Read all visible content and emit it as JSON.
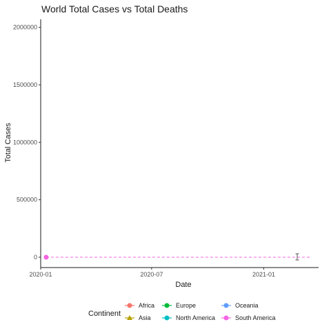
{
  "chart_data": {
    "type": "line",
    "title": "World Total Cases vs Total Deaths",
    "xlabel": "Date",
    "ylabel": "Total Cases",
    "x_range": [
      "2020-01-01",
      "2021-04-01"
    ],
    "ylim": [
      -90000,
      2070000
    ],
    "x_ticks": [
      {
        "date": "2020-01-01",
        "label": "2020-01"
      },
      {
        "date": "2020-07-01",
        "label": "2020-07"
      },
      {
        "date": "2021-01-01",
        "label": "2021-01"
      }
    ],
    "y_ticks": [
      {
        "value": 0,
        "label": "0"
      },
      {
        "value": 500000,
        "label": "500000"
      },
      {
        "value": 1000000,
        "label": "1000000"
      },
      {
        "value": 1500000,
        "label": "1500000"
      },
      {
        "value": 2000000,
        "label": "2000000"
      }
    ],
    "grid": false,
    "legend": {
      "title": "Continent",
      "position": "bottom",
      "entries": [
        {
          "name": "Africa",
          "color": "#F8766D"
        },
        {
          "name": "Asia",
          "color": "#B79F00"
        },
        {
          "name": "Europe",
          "color": "#00BA38"
        },
        {
          "name": "North America",
          "color": "#00BFC4"
        },
        {
          "name": "Oceania",
          "color": "#619CFF"
        },
        {
          "name": "South America",
          "color": "#F564E3"
        }
      ]
    },
    "series": [
      {
        "name": "South America",
        "color": "#F564E3",
        "style": "dashed",
        "x": [
          "2020-01-10",
          "2021-03-20"
        ],
        "values": [
          0,
          0
        ]
      }
    ],
    "points": [
      {
        "name": "South America",
        "color": "#F564E3",
        "date": "2020-01-10",
        "value": 0
      }
    ]
  }
}
